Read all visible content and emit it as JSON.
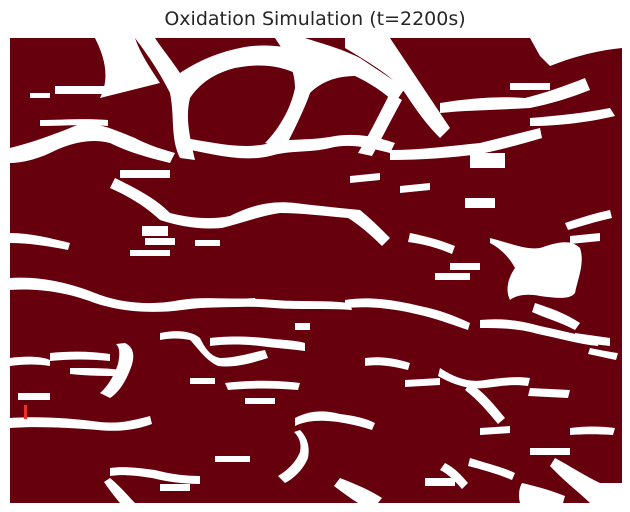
{
  "figure": {
    "title": "Oxidation Simulation (t=2200s)",
    "colors": {
      "oxidized": "#67000d",
      "unoxidized": "#ffffff",
      "nucleation": "#e8322a"
    }
  }
}
